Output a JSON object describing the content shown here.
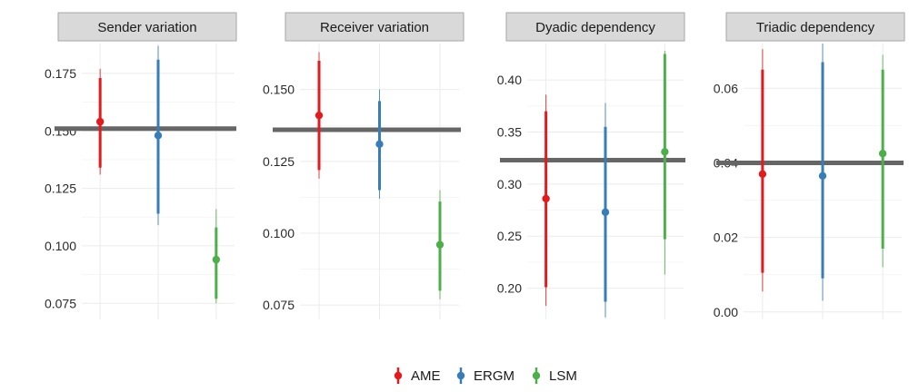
{
  "colors": {
    "AME": "#e41a1c",
    "ERGM": "#377eb8",
    "LSM": "#4daf4a",
    "reference_line": "#666666",
    "strip_fill": "#d9d9d9",
    "grid": "#ebebeb"
  },
  "chart_data": {
    "type": "interval-plot",
    "models": [
      "AME",
      "ERGM",
      "LSM"
    ],
    "legend": {
      "position": "bottom",
      "entries": [
        "AME",
        "ERGM",
        "LSM"
      ]
    },
    "panels": [
      {
        "title": "Sender variation",
        "ylim": [
          0.068,
          0.188
        ],
        "yticks": [
          0.075,
          0.1,
          0.125,
          0.15,
          0.175
        ],
        "ytick_labels": [
          "0.075",
          "0.100",
          "0.125",
          "0.150",
          "0.175"
        ],
        "reference": 0.151,
        "intervals": [
          {
            "model": "AME",
            "estimate": 0.154,
            "inner": [
              0.134,
              0.173
            ],
            "outer": [
              0.131,
              0.177
            ]
          },
          {
            "model": "ERGM",
            "estimate": 0.148,
            "inner": [
              0.114,
              0.181
            ],
            "outer": [
              0.109,
              0.187
            ]
          },
          {
            "model": "LSM",
            "estimate": 0.094,
            "inner": [
              0.077,
              0.108
            ],
            "outer": [
              0.075,
              0.116
            ]
          }
        ]
      },
      {
        "title": "Receiver variation",
        "ylim": [
          0.07,
          0.166
        ],
        "yticks": [
          0.075,
          0.1,
          0.125,
          0.15
        ],
        "ytick_labels": [
          "0.075",
          "0.100",
          "0.125",
          "0.150"
        ],
        "reference": 0.136,
        "intervals": [
          {
            "model": "AME",
            "estimate": 0.141,
            "inner": [
              0.122,
              0.16
            ],
            "outer": [
              0.119,
              0.163
            ]
          },
          {
            "model": "ERGM",
            "estimate": 0.131,
            "inner": [
              0.115,
              0.146
            ],
            "outer": [
              0.112,
              0.15
            ]
          },
          {
            "model": "LSM",
            "estimate": 0.096,
            "inner": [
              0.08,
              0.111
            ],
            "outer": [
              0.077,
              0.115
            ]
          }
        ]
      },
      {
        "title": "Dyadic dependency",
        "ylim": [
          0.17,
          0.435
        ],
        "yticks": [
          0.2,
          0.25,
          0.3,
          0.35,
          0.4
        ],
        "ytick_labels": [
          "0.20",
          "0.25",
          "0.30",
          "0.35",
          "0.40"
        ],
        "reference": 0.323,
        "intervals": [
          {
            "model": "AME",
            "estimate": 0.286,
            "inner": [
              0.201,
              0.37
            ],
            "outer": [
              0.183,
              0.386
            ]
          },
          {
            "model": "ERGM",
            "estimate": 0.273,
            "inner": [
              0.187,
              0.355
            ],
            "outer": [
              0.172,
              0.378
            ]
          },
          {
            "model": "LSM",
            "estimate": 0.331,
            "inner": [
              0.247,
              0.425
            ],
            "outer": [
              0.213,
              0.428
            ]
          }
        ]
      },
      {
        "title": "Triadic dependency",
        "ylim": [
          -0.002,
          0.072
        ],
        "yticks": [
          0.0,
          0.02,
          0.04,
          0.06
        ],
        "ytick_labels": [
          "0.00",
          "0.02",
          "0.04",
          "0.06"
        ],
        "reference": 0.04,
        "intervals": [
          {
            "model": "AME",
            "estimate": 0.037,
            "inner": [
              0.0105,
              0.065
            ],
            "outer": [
              0.0055,
              0.0705
            ]
          },
          {
            "model": "ERGM",
            "estimate": 0.0365,
            "inner": [
              0.009,
              0.067
            ],
            "outer": [
              0.003,
              0.072
            ]
          },
          {
            "model": "LSM",
            "estimate": 0.0425,
            "inner": [
              0.017,
              0.065
            ],
            "outer": [
              0.012,
              0.069
            ]
          }
        ]
      }
    ]
  }
}
